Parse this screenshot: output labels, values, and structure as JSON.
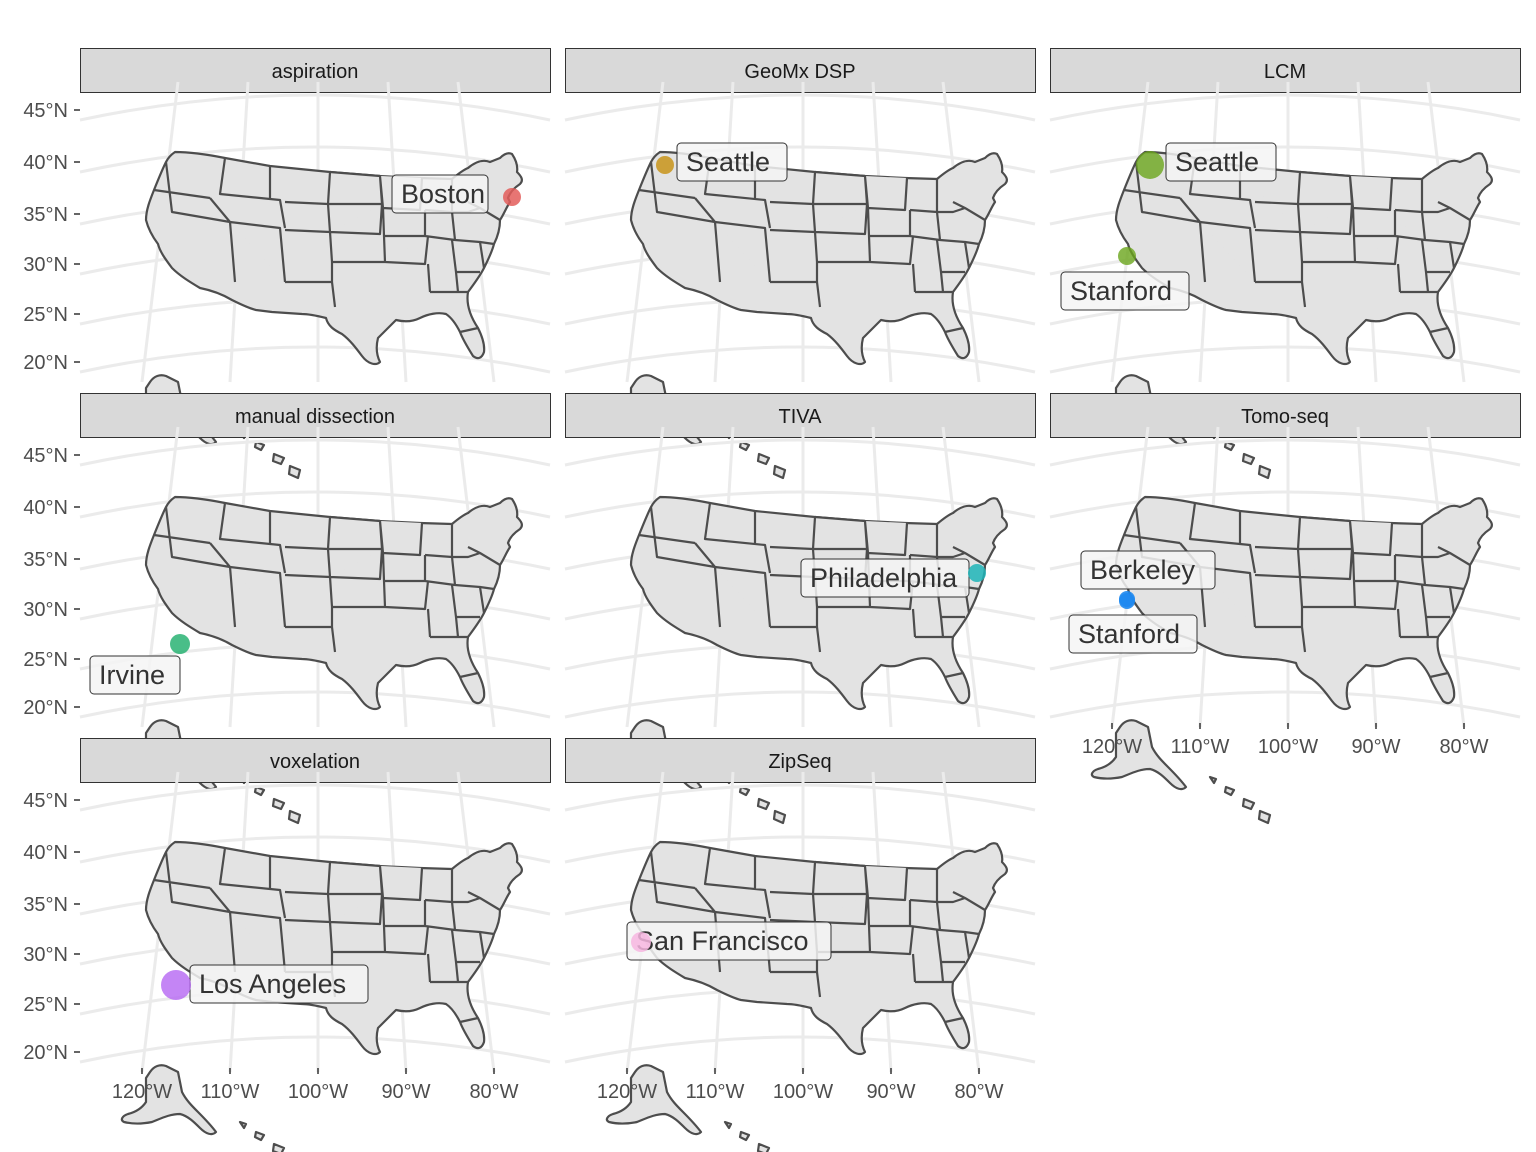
{
  "colors": {
    "strip_fill": "#d9d9d9",
    "strip_border": "#333333",
    "land_fill": "#e3e3e3",
    "border": "#4d4d4d",
    "graticule": "#ebebeb",
    "axis_text": "#4d4d4d",
    "label_fill": "#f5f5f5"
  },
  "lat_labels": [
    "45°N",
    "40°N",
    "35°N",
    "30°N",
    "25°N",
    "20°N"
  ],
  "lon_labels": [
    "120°W",
    "110°W",
    "100°W",
    "90°W",
    "80°W"
  ],
  "panels": [
    {
      "title": "aspiration",
      "points": [
        {
          "city": "Boston",
          "color": "#e35d5b",
          "r": 9,
          "alpha": 0.85
        }
      ]
    },
    {
      "title": "GeoMx DSP",
      "points": [
        {
          "city": "Seattle",
          "color": "#c8941a",
          "r": 9,
          "alpha": 0.85
        }
      ]
    },
    {
      "title": "LCM",
      "points": [
        {
          "city": "Seattle",
          "color": "#6aa51c",
          "r": 14,
          "alpha": 0.8
        },
        {
          "city": "Stanford",
          "color": "#6aa51c",
          "r": 9,
          "alpha": 0.8
        }
      ]
    },
    {
      "title": "manual dissection",
      "points": [
        {
          "city": "Irvine",
          "color": "#1cae6a",
          "r": 10,
          "alpha": 0.8
        }
      ]
    },
    {
      "title": "TIVA",
      "points": [
        {
          "city": "Philadelphia",
          "color": "#1fb5b8",
          "r": 9,
          "alpha": 0.85
        }
      ]
    },
    {
      "title": "Tomo-seq",
      "points": [
        {
          "city": "Berkeley",
          "color": "#1e88f0",
          "r": 8,
          "alpha": 0.9
        },
        {
          "city": "Stanford",
          "color": "#1e88f0",
          "r": 8,
          "alpha": 0.9
        }
      ]
    },
    {
      "title": "voxelation",
      "points": [
        {
          "city": "Los Angeles",
          "color": "#b566f2",
          "r": 15,
          "alpha": 0.8
        }
      ]
    },
    {
      "title": "ZipSeq",
      "points": [
        {
          "city": "San Francisco",
          "color": "#f7b6e0",
          "r": 10,
          "alpha": 0.85
        }
      ]
    }
  ]
}
